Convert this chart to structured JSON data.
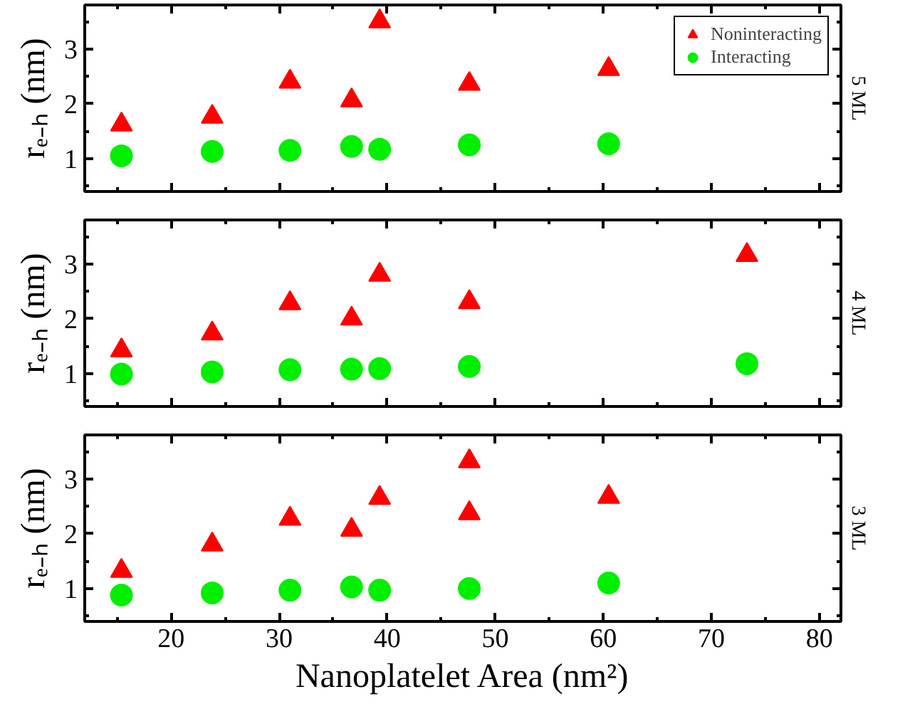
{
  "chart_data": [
    {
      "type": "scatter",
      "ylabel": "rₑ₋ₕ (nm)",
      "y2label": "5 ML",
      "xlim": [
        12,
        82
      ],
      "ylim": [
        0.4,
        3.8
      ],
      "tick_labels": "y",
      "legend": "top right",
      "grid": false,
      "xticks": [
        20,
        30,
        40,
        50,
        60,
        70,
        80,
        {
          "value": 15,
          "label": null
        },
        {
          "value": 25,
          "label": null
        },
        {
          "value": 35,
          "label": null
        },
        {
          "value": 45,
          "label": null
        },
        {
          "value": 55,
          "label": null
        },
        {
          "value": 65,
          "label": null
        },
        {
          "value": 75,
          "label": null
        }
      ],
      "yticks": [
        1,
        2,
        3,
        {
          "value": 0.5,
          "label": null
        },
        {
          "value": 1.5,
          "label": null
        },
        {
          "value": 2.5,
          "label": null
        },
        {
          "value": 3.5,
          "label": null
        }
      ],
      "series": [
        {
          "name": "Noninteracting",
          "color": "#ff0000",
          "marker": "triangle",
          "x": [
            15.4,
            23.8,
            31.0,
            36.7,
            39.3,
            47.6,
            60.5
          ],
          "values": [
            1.62,
            1.76,
            2.4,
            2.06,
            3.5,
            2.36,
            2.63
          ]
        },
        {
          "name": "Interacting",
          "color": "#00ee00",
          "marker": "circle",
          "x": [
            15.4,
            23.8,
            31.0,
            36.7,
            39.3,
            47.6,
            60.5
          ],
          "values": [
            1.05,
            1.13,
            1.15,
            1.22,
            1.17,
            1.25,
            1.27
          ]
        }
      ]
    },
    {
      "type": "scatter",
      "ylabel": "rₑ₋ₕ (nm)",
      "y2label": "4 ML",
      "xlim": [
        12,
        82
      ],
      "ylim": [
        0.4,
        3.8
      ],
      "tick_labels": "y",
      "grid": false,
      "xticks": [
        20,
        30,
        40,
        50,
        60,
        70,
        80,
        {
          "value": 15,
          "label": null
        },
        {
          "value": 25,
          "label": null
        },
        {
          "value": 35,
          "label": null
        },
        {
          "value": 45,
          "label": null
        },
        {
          "value": 55,
          "label": null
        },
        {
          "value": 65,
          "label": null
        },
        {
          "value": 75,
          "label": null
        }
      ],
      "yticks": [
        1,
        2,
        3,
        {
          "value": 0.5,
          "label": null
        },
        {
          "value": 1.5,
          "label": null
        },
        {
          "value": 2.5,
          "label": null
        },
        {
          "value": 3.5,
          "label": null
        }
      ],
      "series": [
        {
          "color": "#ff0000",
          "marker": "triangle",
          "x": [
            15.4,
            23.8,
            31.0,
            36.7,
            39.3,
            47.6,
            73.3
          ],
          "values": [
            1.42,
            1.73,
            2.28,
            2.0,
            2.8,
            2.3,
            3.16
          ]
        },
        {
          "color": "#00ee00",
          "marker": "circle",
          "x": [
            15.4,
            23.8,
            31.0,
            36.7,
            39.3,
            47.6,
            73.3
          ],
          "values": [
            0.99,
            1.03,
            1.07,
            1.08,
            1.09,
            1.13,
            1.18
          ]
        }
      ]
    },
    {
      "type": "scatter",
      "ylabel": "rₑ₋ₕ (nm)",
      "y2label": "3 ML",
      "xlabel": "Nanoplatelet Area (nm²)",
      "xlim": [
        12,
        82
      ],
      "ylim": [
        0.4,
        3.8
      ],
      "grid": false,
      "xticks": [
        20,
        30,
        40,
        50,
        60,
        70,
        80,
        {
          "value": 15,
          "label": null
        },
        {
          "value": 25,
          "label": null
        },
        {
          "value": 35,
          "label": null
        },
        {
          "value": 45,
          "label": null
        },
        {
          "value": 55,
          "label": null
        },
        {
          "value": 65,
          "label": null
        },
        {
          "value": 75,
          "label": null
        }
      ],
      "yticks": [
        1,
        2,
        3,
        {
          "value": 0.5,
          "label": null
        },
        {
          "value": 1.5,
          "label": null
        },
        {
          "value": 2.5,
          "label": null
        },
        {
          "value": 3.5,
          "label": null
        }
      ],
      "series": [
        {
          "color": "#ff0000",
          "marker": "triangle",
          "x": [
            15.4,
            23.8,
            31.0,
            36.7,
            39.3,
            47.6,
            47.6,
            60.5
          ],
          "values": [
            1.32,
            1.8,
            2.27,
            2.07,
            2.65,
            3.32,
            2.37,
            2.67
          ]
        },
        {
          "color": "#00ee00",
          "marker": "circle",
          "x": [
            15.4,
            23.8,
            31.0,
            36.7,
            39.3,
            47.6,
            60.5
          ],
          "values": [
            0.88,
            0.92,
            0.97,
            1.03,
            0.97,
            1.0,
            1.1
          ]
        }
      ]
    }
  ]
}
